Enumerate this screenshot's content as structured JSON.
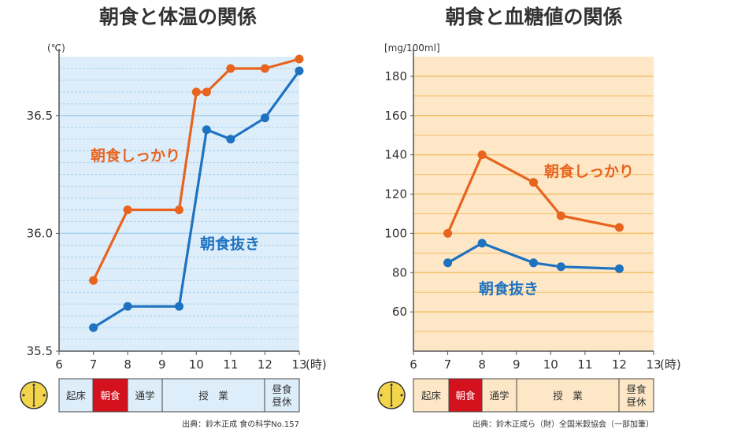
{
  "chart_data": [
    {
      "type": "line",
      "title": "朝食と体温の関係",
      "ylabel": "(℃)",
      "xlabel": "(時)",
      "x_ticks": [
        "6",
        "7",
        "8",
        "9",
        "10",
        "11",
        "12",
        "13"
      ],
      "y_ticks": [
        "35.5",
        "36.0",
        "36.5"
      ],
      "ylim": [
        35.5,
        36.75
      ],
      "xlim": [
        6,
        13
      ],
      "grid": "horizontal",
      "background": "#ddeefa",
      "series": [
        {
          "name": "朝食しっかり",
          "color": "#e8641e",
          "points": [
            [
              7,
              35.8
            ],
            [
              8,
              36.1
            ],
            [
              9.5,
              36.1
            ],
            [
              10,
              36.6
            ],
            [
              10.3,
              36.6
            ],
            [
              11,
              36.7
            ],
            [
              12,
              36.7
            ],
            [
              13,
              36.74
            ]
          ]
        },
        {
          "name": "朝食抜き",
          "color": "#1e72c0",
          "points": [
            [
              7,
              35.6
            ],
            [
              8,
              35.69
            ],
            [
              9.5,
              35.69
            ],
            [
              10.3,
              36.44
            ],
            [
              11,
              36.4
            ],
            [
              12,
              36.49
            ],
            [
              13,
              36.69
            ]
          ]
        }
      ],
      "schedule": [
        "起床",
        "朝食",
        "通学",
        "授　業",
        "昼食昼休"
      ],
      "source": "出典：鈴木正成 食の科学No.157"
    },
    {
      "type": "line",
      "title": "朝食と血糖値の関係",
      "ylabel": "[mg/100ml]",
      "xlabel": "(時)",
      "x_ticks": [
        "6",
        "7",
        "8",
        "9",
        "10",
        "11",
        "12",
        "13"
      ],
      "y_ticks": [
        "60",
        "80",
        "100",
        "120",
        "140",
        "160",
        "180"
      ],
      "ylim": [
        40,
        190
      ],
      "xlim": [
        6,
        13
      ],
      "grid": "horizontal",
      "background": "#fde7c6",
      "series": [
        {
          "name": "朝食しっかり",
          "color": "#e8641e",
          "points": [
            [
              7,
              100
            ],
            [
              8,
              140
            ],
            [
              9.5,
              126
            ],
            [
              10.3,
              109
            ],
            [
              12,
              103
            ]
          ]
        },
        {
          "name": "朝食抜き",
          "color": "#1e72c0",
          "points": [
            [
              7,
              85
            ],
            [
              8,
              95
            ],
            [
              9.5,
              85
            ],
            [
              10.3,
              83
            ],
            [
              12,
              82
            ]
          ]
        }
      ],
      "schedule": [
        "起床",
        "朝食",
        "通学",
        "授　業",
        "昼食昼休"
      ],
      "source": "出典：鈴木正成ら（財）全国米穀協会（一部加筆）"
    }
  ],
  "colors": {
    "grid": "#a9d1ef",
    "grid_orange": "#f4c06a",
    "schedule_highlight": "#d4121e",
    "clock_fill": "#f3d54c"
  }
}
